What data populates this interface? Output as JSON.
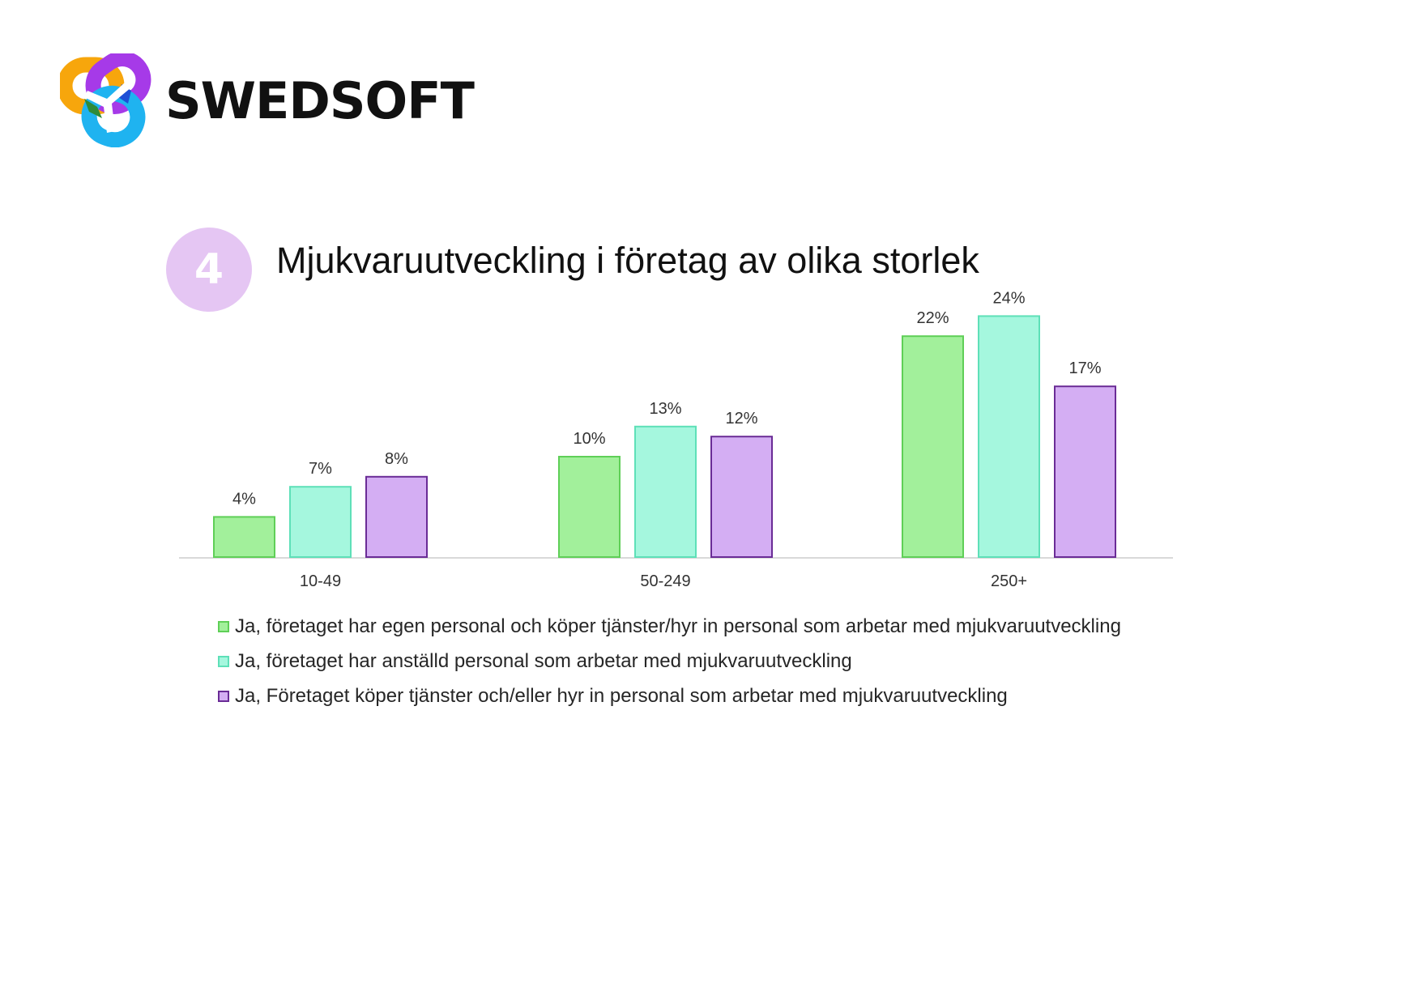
{
  "brand": {
    "name": "SWEDSOFT",
    "logo_icon": "swedsoft-logo-icon"
  },
  "figure_number": "4",
  "chart_data": {
    "type": "bar",
    "title": "Mjukvaruutveckling i företag av olika storlek",
    "categories": [
      "10-49",
      "50-249",
      "250+"
    ],
    "series": [
      {
        "name": "Ja, företaget har egen personal och köper tjänster/hyr in personal som arbetar med mjukvaruutveckling",
        "values": [
          4,
          10,
          22
        ],
        "labels": [
          "4%",
          "10%",
          "22%"
        ],
        "fill": "#a2f09b",
        "stroke": "#5fcf57"
      },
      {
        "name": "Ja, företaget har anställd personal som arbetar med mjukvaruutveckling",
        "values": [
          7,
          13,
          24
        ],
        "labels": [
          "7%",
          "13%",
          "24%"
        ],
        "fill": "#a5f7de",
        "stroke": "#5ee0b8"
      },
      {
        "name": "Ja, Företaget köper tjänster och/eller hyr in personal som arbetar med mjukvaruutveckling",
        "values": [
          8,
          12,
          17
        ],
        "labels": [
          "8%",
          "12%",
          "17%"
        ],
        "fill": "#d4aef3",
        "stroke": "#6a2c96"
      }
    ],
    "unit": "%",
    "ylim": [
      0,
      24
    ],
    "grid": false,
    "legend_position": "bottom"
  }
}
